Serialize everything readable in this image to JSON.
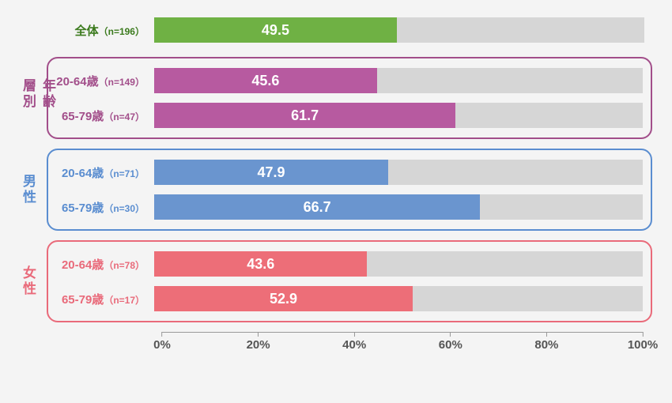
{
  "chart": {
    "type": "bar",
    "xlim": [
      0,
      100
    ],
    "xtick_step": 20,
    "xtick_suffix": "%",
    "track_color": "#d6d6d6",
    "background_color": "#f4f4f4",
    "value_font_color": "#ffffff",
    "value_font_size": 18,
    "label_font_size": 15,
    "n_font_size": 12,
    "tick_font_size": 15,
    "tick_color": "#555555",
    "overall": {
      "label": "全体",
      "n_label": "（n=196）",
      "value": 49.5,
      "bar_color": "#6fb144",
      "label_color": "#3b7a1d"
    },
    "groups": [
      {
        "key": "age",
        "group_label": "年齢層別",
        "border_color": "#a24e8a",
        "label_color": "#a24e8a",
        "bar_color": "#b75aa0",
        "rows": [
          {
            "label": "20-64歳",
            "n_label": "（n=149）",
            "value": 45.6
          },
          {
            "label": "65-79歳",
            "n_label": "（n=47）",
            "value": 61.7
          }
        ]
      },
      {
        "key": "male",
        "group_label": "男性",
        "border_color": "#5a8dd0",
        "label_color": "#5a8dd0",
        "bar_color": "#6a95cf",
        "rows": [
          {
            "label": "20-64歳",
            "n_label": "（n=71）",
            "value": 47.9
          },
          {
            "label": "65-79歳",
            "n_label": "（n=30）",
            "value": 66.7
          }
        ]
      },
      {
        "key": "female",
        "group_label": "女性",
        "border_color": "#e96a7a",
        "label_color": "#e96a7a",
        "bar_color": "#ed6e78",
        "rows": [
          {
            "label": "20-64歳",
            "n_label": "（n=78）",
            "value": 43.6
          },
          {
            "label": "65-79歳",
            "n_label": "（n=17）",
            "value": 52.9
          }
        ]
      }
    ],
    "ticks": [
      {
        "pos": 0,
        "label": "0%"
      },
      {
        "pos": 20,
        "label": "20%"
      },
      {
        "pos": 40,
        "label": "40%"
      },
      {
        "pos": 60,
        "label": "60%"
      },
      {
        "pos": 80,
        "label": "80%"
      },
      {
        "pos": 100,
        "label": "100%"
      }
    ]
  }
}
